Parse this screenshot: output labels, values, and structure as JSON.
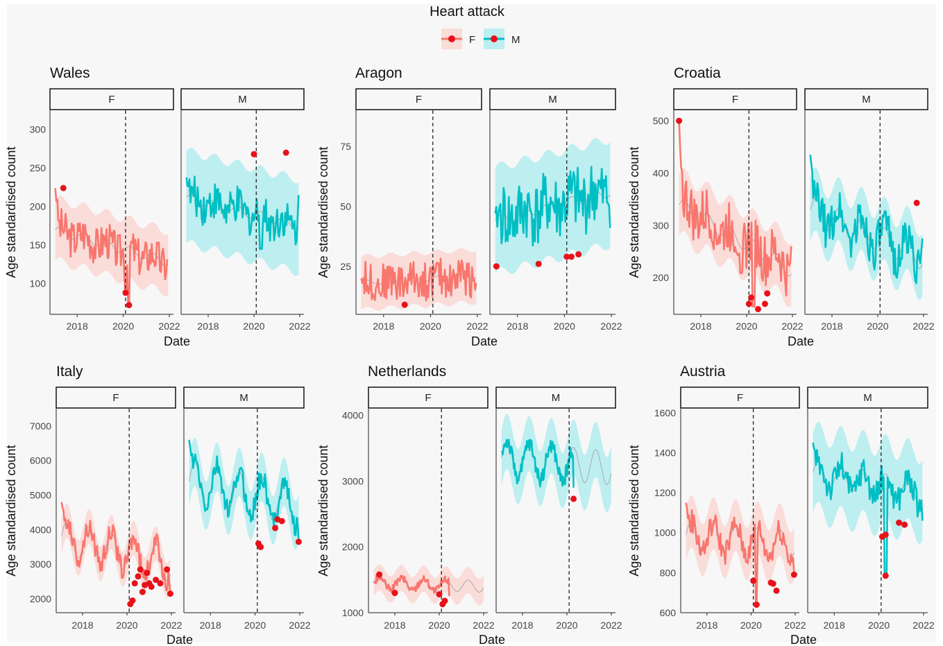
{
  "title": "Heart attack",
  "legend": [
    {
      "name": "F",
      "line_color": "#f8766d",
      "band_color": "#fadcd9",
      "point_color": "#e8111a"
    },
    {
      "name": "M",
      "line_color": "#00bfc4",
      "band_color": "#bdeef0",
      "point_color": "#e8111a"
    }
  ],
  "background": "#f7f7f7",
  "chart_data": [
    {
      "region": "Wales",
      "type": "line",
      "xlabel": "Date",
      "ylabel": "Age standardised count",
      "x_ticks": [
        "2018",
        "2020",
        "2022"
      ],
      "xlim": [
        2017.0,
        2022.0
      ],
      "y_ticks": [
        "100",
        "150",
        "200",
        "250",
        "300"
      ],
      "ylim": [
        60,
        325
      ],
      "intervention": 2020.1,
      "facets": [
        {
          "name": "F",
          "start": 224,
          "end": 130,
          "center_start": 170,
          "center_end": 128,
          "band": 40,
          "seasonal_amp": 6,
          "noise": 25,
          "dips": [
            {
              "x": 2020.1,
              "y": 88
            },
            {
              "x": 2020.25,
              "y": 72
            }
          ],
          "outliers": [
            {
              "x": 2017.4,
              "y": 224
            },
            {
              "x": 2020.1,
              "y": 88
            },
            {
              "x": 2020.25,
              "y": 72
            }
          ]
        },
        {
          "name": "M",
          "start": 238,
          "end": 215,
          "center_start": 212,
          "center_end": 175,
          "band": 60,
          "seasonal_amp": 6,
          "noise": 25,
          "dips": [
            {
              "x": 2020.3,
              "y": 145
            }
          ],
          "outliers": [
            {
              "x": 2020.0,
              "y": 268
            },
            {
              "x": 2021.4,
              "y": 270
            }
          ]
        }
      ]
    },
    {
      "region": "Aragon",
      "type": "line",
      "xlabel": "Date",
      "ylabel": "Age standardised count",
      "x_ticks": [
        "2018",
        "2020",
        "2022"
      ],
      "xlim": [
        2017.0,
        2022.0
      ],
      "y_ticks": [
        "25",
        "50",
        "75"
      ],
      "ylim": [
        5,
        90
      ],
      "intervention": 2020.1,
      "facets": [
        {
          "name": "F",
          "start": 20,
          "end": 18,
          "center_start": 18,
          "center_end": 21,
          "band": 11,
          "seasonal_amp": 1,
          "noise": 8,
          "dips": [],
          "outliers": [
            {
              "x": 2018.9,
              "y": 9
            }
          ]
        },
        {
          "name": "M",
          "start": 47,
          "end": 41,
          "center_start": 44,
          "center_end": 56,
          "band": 22,
          "seasonal_amp": 2,
          "noise": 14,
          "dips": [],
          "outliers": [
            {
              "x": 2017.1,
              "y": 25
            },
            {
              "x": 2018.9,
              "y": 26
            },
            {
              "x": 2020.1,
              "y": 29
            },
            {
              "x": 2020.3,
              "y": 29
            },
            {
              "x": 2020.6,
              "y": 30
            }
          ]
        }
      ]
    },
    {
      "region": "Croatia",
      "type": "line",
      "xlabel": "Date",
      "ylabel": "Age standardised count",
      "x_ticks": [
        "2018",
        "2020",
        "2022"
      ],
      "xlim": [
        2017.0,
        2022.0
      ],
      "y_ticks": [
        "200",
        "300",
        "400",
        "500"
      ],
      "ylim": [
        130,
        520
      ],
      "intervention": 2020.1,
      "facets": [
        {
          "name": "F",
          "start": 500,
          "end": 260,
          "center_start": 340,
          "center_end": 215,
          "band": 60,
          "seasonal_amp": 15,
          "noise": 50,
          "dips": [
            {
              "x": 2020.3,
              "y": 145
            }
          ],
          "outliers": [
            {
              "x": 2017.05,
              "y": 500
            },
            {
              "x": 2020.1,
              "y": 150
            },
            {
              "x": 2020.2,
              "y": 162
            },
            {
              "x": 2020.5,
              "y": 140
            },
            {
              "x": 2020.8,
              "y": 150
            },
            {
              "x": 2020.9,
              "y": 170
            }
          ]
        },
        {
          "name": "M",
          "start": 435,
          "end": 275,
          "center_start": 330,
          "center_end": 240,
          "band": 60,
          "seasonal_amp": 25,
          "noise": 40,
          "dips": [],
          "outliers": [
            {
              "x": 2021.7,
              "y": 343
            }
          ]
        }
      ]
    },
    {
      "region": "Italy",
      "type": "line",
      "xlabel": "Date",
      "ylabel": "Age standardised count",
      "x_ticks": [
        "2018",
        "2020",
        "2022"
      ],
      "xlim": [
        2017.0,
        2022.0
      ],
      "y_ticks": [
        "2000",
        "3000",
        "4000",
        "5000",
        "6000",
        "7000"
      ],
      "ylim": [
        1600,
        7500
      ],
      "intervention": 2020.1,
      "facets": [
        {
          "name": "F",
          "start": 4800,
          "end": 2200,
          "center_start": 3800,
          "center_end": 3000,
          "band": 500,
          "seasonal_amp": 500,
          "noise": 300,
          "dips": [],
          "outliers": [
            {
              "x": 2020.15,
              "y": 1850
            },
            {
              "x": 2020.25,
              "y": 1950
            },
            {
              "x": 2020.35,
              "y": 2450
            },
            {
              "x": 2020.5,
              "y": 2650
            },
            {
              "x": 2020.6,
              "y": 2850
            },
            {
              "x": 2020.7,
              "y": 2200
            },
            {
              "x": 2020.8,
              "y": 2400
            },
            {
              "x": 2020.9,
              "y": 2750
            },
            {
              "x": 2021.0,
              "y": 2450
            },
            {
              "x": 2021.1,
              "y": 2350
            },
            {
              "x": 2021.3,
              "y": 2550
            },
            {
              "x": 2021.5,
              "y": 2450
            },
            {
              "x": 2021.8,
              "y": 2850
            },
            {
              "x": 2021.95,
              "y": 2150
            }
          ]
        },
        {
          "name": "M",
          "start": 6600,
          "end": 3700,
          "center_start": 5400,
          "center_end": 4700,
          "band": 700,
          "seasonal_amp": 600,
          "noise": 300,
          "dips": [],
          "outliers": [
            {
              "x": 2020.15,
              "y": 3600
            },
            {
              "x": 2020.25,
              "y": 3500
            },
            {
              "x": 2020.9,
              "y": 4050
            },
            {
              "x": 2021.0,
              "y": 4300
            },
            {
              "x": 2021.2,
              "y": 4250
            },
            {
              "x": 2021.95,
              "y": 3650
            }
          ]
        }
      ]
    },
    {
      "region": "Netherlands",
      "type": "line",
      "xlabel": "Date",
      "ylabel": "Age standardised count",
      "x_ticks": [
        "2018",
        "2020",
        "2022"
      ],
      "xlim": [
        2017.0,
        2022.0
      ],
      "y_ticks": [
        "1000",
        "2000",
        "3000",
        "4000"
      ],
      "ylim": [
        1000,
        4100
      ],
      "intervention": 2020.1,
      "facets": [
        {
          "name": "F",
          "start": 1450,
          "end": 1250,
          "center_start": 1450,
          "center_end": 1400,
          "band": 200,
          "seasonal_amp": 90,
          "noise": 60,
          "dips": [],
          "end_x": 2020.45,
          "outliers": [
            {
              "x": 2017.3,
              "y": 1580
            },
            {
              "x": 2018.0,
              "y": 1300
            },
            {
              "x": 2020.0,
              "y": 1280
            },
            {
              "x": 2020.15,
              "y": 1130
            },
            {
              "x": 2020.25,
              "y": 1180
            }
          ]
        },
        {
          "name": "M",
          "start": 3450,
          "end": 2900,
          "center_start": 3350,
          "center_end": 3200,
          "band": 420,
          "seasonal_amp": 260,
          "noise": 120,
          "dips": [],
          "end_x": 2020.3,
          "outliers": [
            {
              "x": 2020.3,
              "y": 2730
            }
          ]
        }
      ]
    },
    {
      "region": "Austria",
      "type": "line",
      "xlabel": "Date",
      "ylabel": "Age standardised count",
      "x_ticks": [
        "2018",
        "2020",
        "2022"
      ],
      "xlim": [
        2017.0,
        2022.0
      ],
      "y_ticks": [
        "600",
        "800",
        "1000",
        "1200",
        "1400",
        "1600"
      ],
      "ylim": [
        600,
        1620
      ],
      "intervention": 2020.1,
      "facets": [
        {
          "name": "F",
          "start": 1150,
          "end": 800,
          "center_start": 990,
          "center_end": 940,
          "band": 130,
          "seasonal_amp": 70,
          "noise": 60,
          "dips": [
            {
              "x": 2020.25,
              "y": 650
            }
          ],
          "outliers": [
            {
              "x": 2020.1,
              "y": 760
            },
            {
              "x": 2020.25,
              "y": 640
            },
            {
              "x": 2020.9,
              "y": 750
            },
            {
              "x": 2021.0,
              "y": 745
            },
            {
              "x": 2021.15,
              "y": 710
            },
            {
              "x": 2021.95,
              "y": 790
            }
          ]
        },
        {
          "name": "M",
          "start": 1450,
          "end": 1060,
          "center_start": 1300,
          "center_end": 1200,
          "band": 200,
          "seasonal_amp": 60,
          "noise": 70,
          "dips": [
            {
              "x": 2020.3,
              "y": 790
            }
          ],
          "outliers": [
            {
              "x": 2020.15,
              "y": 980
            },
            {
              "x": 2020.3,
              "y": 990
            },
            {
              "x": 2020.3,
              "y": 785
            },
            {
              "x": 2020.9,
              "y": 1050
            },
            {
              "x": 2021.15,
              "y": 1040
            }
          ]
        }
      ]
    }
  ]
}
